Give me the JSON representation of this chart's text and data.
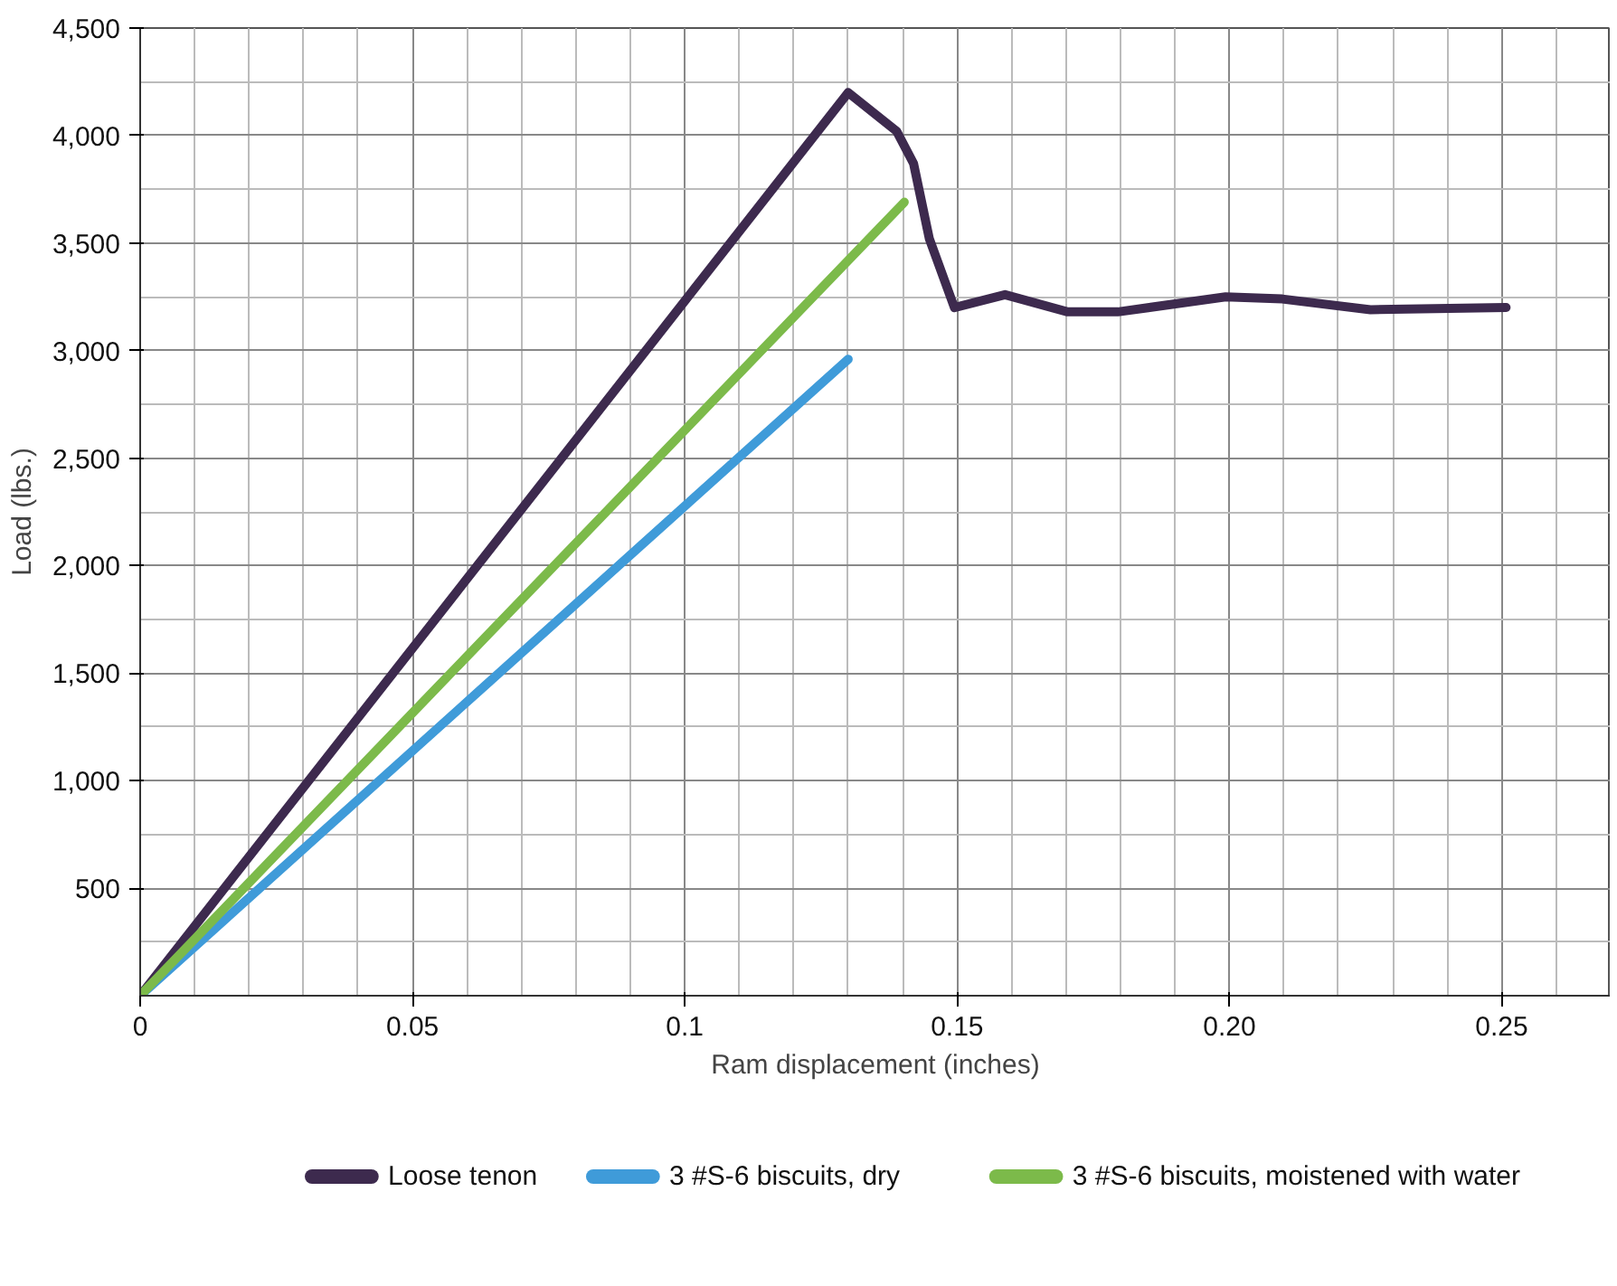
{
  "chart_data": {
    "type": "line",
    "xlabel": "Ram displacement (inches)",
    "ylabel": "Load (lbs.)",
    "xlim": [
      0,
      0.27
    ],
    "ylim": [
      0,
      4500
    ],
    "xticks": [
      0,
      0.05,
      0.1,
      0.15,
      {
        "value": 0.2,
        "label": "0.20"
      },
      0.25
    ],
    "yticks": [
      500,
      {
        "value": 1000,
        "label": "1,000"
      },
      {
        "value": 1500,
        "label": "1,500"
      },
      {
        "value": 2000,
        "label": "2,000"
      },
      {
        "value": 2500,
        "label": "2,500"
      },
      {
        "value": 3000,
        "label": "3,000"
      },
      {
        "value": 3500,
        "label": "3,500"
      },
      {
        "value": 4000,
        "label": "4,000"
      },
      {
        "value": 4500,
        "label": "4,500"
      }
    ],
    "grid": true,
    "legend": "bottom",
    "marker": "none",
    "line_style": "solid",
    "series": [
      {
        "name": "Loose tenon",
        "color": "#3d2a4e",
        "x": [
          0,
          0.13,
          0.1389,
          0.142,
          0.1449,
          0.1495,
          0.1588,
          0.1703,
          0.1795,
          0.1993,
          0.2097,
          0.2259,
          0.2508
        ],
        "values": [
          0,
          4200,
          4020,
          3870,
          3520,
          3200,
          3260,
          3180,
          3180,
          3250,
          3240,
          3190,
          3200
        ]
      },
      {
        "name": "3 #S-6 biscuits, dry",
        "color": "#3f9bd9",
        "x": [
          0,
          0.13
        ],
        "values": [
          0,
          2960
        ]
      },
      {
        "name": "3 #S-6 biscuits, moistened with water",
        "color": "#7cba4a",
        "x": [
          0,
          0.1403
        ],
        "values": [
          0,
          3690
        ]
      }
    ]
  }
}
